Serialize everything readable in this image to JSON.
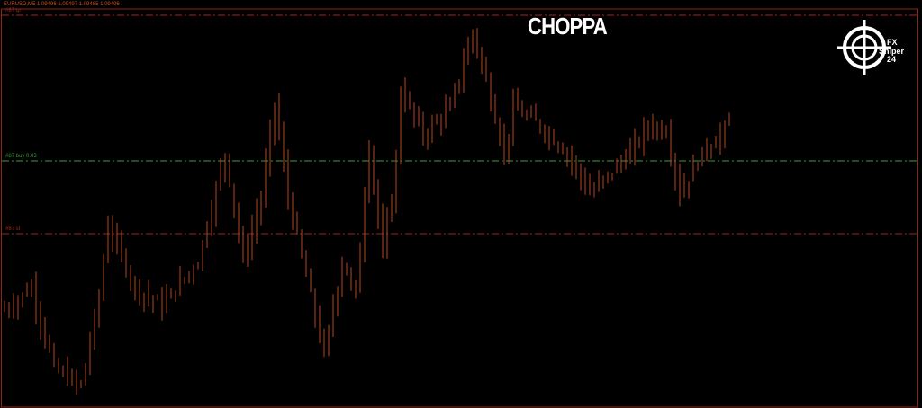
{
  "header": {
    "symbol_info": "EURUSD,M5  1.09496 1.09497 1.09485 1.09496"
  },
  "title": "CHOPPA",
  "logo": {
    "text": "FX Sniper 24"
  },
  "levels": [
    {
      "label": "#87 tp",
      "price": 1.09619,
      "color": "#a0281e",
      "style": "dash-dot"
    },
    {
      "label": "#87 buy 0.03",
      "price": 1.09457,
      "color": "#3c9a3c",
      "style": "dash-dot"
    },
    {
      "label": "#87 sl",
      "price": 1.09376,
      "color": "#a0281e",
      "style": "dash-dot"
    }
  ],
  "colors": {
    "candle": "#b4461e",
    "background": "#000000",
    "border": "#8c2814"
  },
  "chart_data": {
    "type": "candlestick",
    "symbol": "EURUSD",
    "timeframe": "M5",
    "ylim": [
      1.09182,
      1.09636
    ],
    "grid": false,
    "candle_count": 162,
    "close_path": {
      "index": [
        0,
        6,
        11,
        17,
        21,
        23,
        29,
        35,
        43,
        49,
        53,
        57,
        60,
        63,
        68,
        71,
        75,
        78,
        81,
        84,
        87,
        88,
        93,
        99,
        104,
        108,
        111,
        113,
        119,
        125,
        130,
        135,
        139,
        143,
        147,
        150,
        155,
        161
      ],
      "price": [
        1.09291,
        1.09316,
        1.09226,
        1.09206,
        1.09306,
        1.09386,
        1.09316,
        1.09296,
        1.09346,
        1.09466,
        1.09346,
        1.09416,
        1.09521,
        1.09416,
        1.09306,
        1.09241,
        1.09346,
        1.09306,
        1.09476,
        1.09351,
        1.09456,
        1.09536,
        1.09486,
        1.09516,
        1.09601,
        1.09526,
        1.09466,
        1.09516,
        1.09496,
        1.09466,
        1.09421,
        1.09446,
        1.09466,
        1.09496,
        1.09491,
        1.09421,
        1.09466,
        1.09496
      ]
    },
    "last": {
      "open": 1.09496,
      "high": 1.09497,
      "low": 1.09485,
      "close": 1.09496
    }
  }
}
